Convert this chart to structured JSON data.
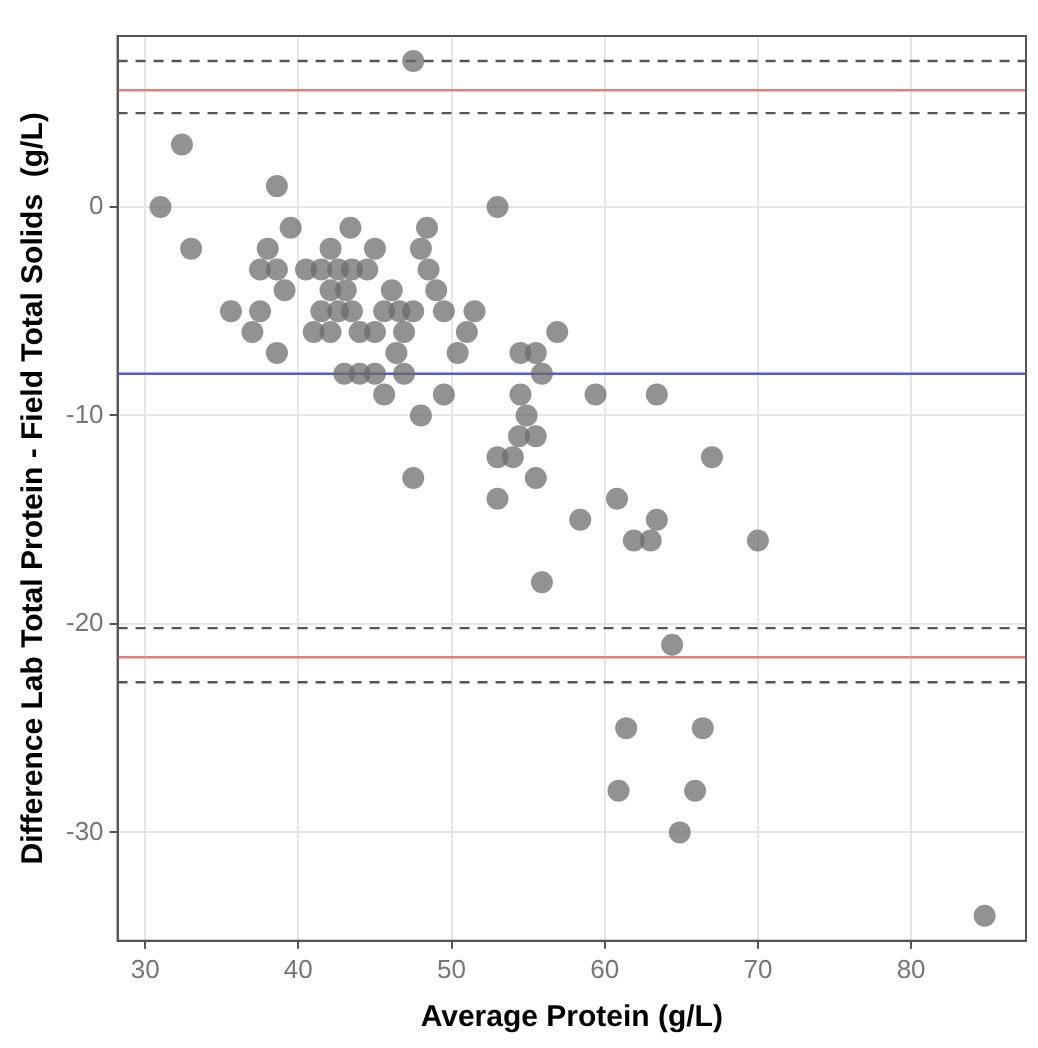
{
  "chart_data": {
    "type": "scatter",
    "xlabel": "Average Protein (g/L)",
    "ylabel": "Difference Lab Total Protein - Field Total Solids  (g/L)",
    "x": [
      47.5,
      32.4,
      31.0,
      38.6,
      33.0,
      39.5,
      43.4,
      48.4,
      38.0,
      42.1,
      45.0,
      48.0,
      37.5,
      38.6,
      40.5,
      41.5,
      42.6,
      43.5,
      44.5,
      48.5,
      39.1,
      42.1,
      43.1,
      46.1,
      49.0,
      35.6,
      37.5,
      41.5,
      42.6,
      43.5,
      45.6,
      46.6,
      47.5,
      49.5,
      51.5,
      37.0,
      41.0,
      42.1,
      44.0,
      45.0,
      46.9,
      51.0,
      38.6,
      46.4,
      50.4,
      43.0,
      44.0,
      45.0,
      46.9,
      45.6,
      49.5,
      48.0,
      47.5,
      53.0,
      56.9,
      54.5,
      55.5,
      55.9,
      54.5,
      59.4,
      63.4,
      54.9,
      54.4,
      55.5,
      53.0,
      54.0,
      55.5,
      67.0,
      53.0,
      60.8,
      58.4,
      63.4,
      61.9,
      63.0,
      70.0,
      55.9,
      64.4,
      61.4,
      66.4,
      60.9,
      65.9,
      64.9,
      84.8
    ],
    "values": [
      7,
      3,
      0,
      1,
      -2,
      -1,
      -1,
      -1,
      -2,
      -2,
      -2,
      -2,
      -3,
      -3,
      -3,
      -3,
      -3,
      -3,
      -3,
      -3,
      -4,
      -4,
      -4,
      -4,
      -4,
      -5,
      -5,
      -5,
      -5,
      -5,
      -5,
      -5,
      -5,
      -5,
      -5,
      -6,
      -6,
      -6,
      -6,
      -6,
      -6,
      -6,
      -7,
      -7,
      -7,
      -8,
      -8,
      -8,
      -8,
      -9,
      -9,
      -10,
      -13,
      0,
      -6,
      -7,
      -7,
      -8,
      -9,
      -9,
      -9,
      -10,
      -11,
      -11,
      -12,
      -12,
      -13,
      -12,
      -14,
      -14,
      -15,
      -15,
      -16,
      -16,
      -16,
      -18,
      -21,
      -25,
      -25,
      -28,
      -28,
      -30,
      -34
    ],
    "color": "#6b6b6b",
    "marker": "circle",
    "xlim": [
      28.2,
      87.5
    ],
    "ylim": [
      -35.2,
      8.2
    ],
    "xticks": [
      30,
      40,
      50,
      60,
      70,
      80
    ],
    "yticks": [
      -30,
      -20,
      -10,
      0
    ],
    "grid": true,
    "ref_lines": [
      {
        "axis": "y",
        "value": 7.0,
        "color": "#555555",
        "line_style": "dashed"
      },
      {
        "axis": "y",
        "value": 5.6,
        "color": "#e08080",
        "line_style": "solid"
      },
      {
        "axis": "y",
        "value": 4.5,
        "color": "#555555",
        "line_style": "dashed"
      },
      {
        "axis": "y",
        "value": -8.0,
        "color": "#5a5ac8",
        "line_style": "solid"
      },
      {
        "axis": "y",
        "value": -20.2,
        "color": "#555555",
        "line_style": "dashed"
      },
      {
        "axis": "y",
        "value": -21.6,
        "color": "#e08080",
        "line_style": "solid"
      },
      {
        "axis": "y",
        "value": -22.8,
        "color": "#555555",
        "line_style": "dashed"
      }
    ]
  }
}
